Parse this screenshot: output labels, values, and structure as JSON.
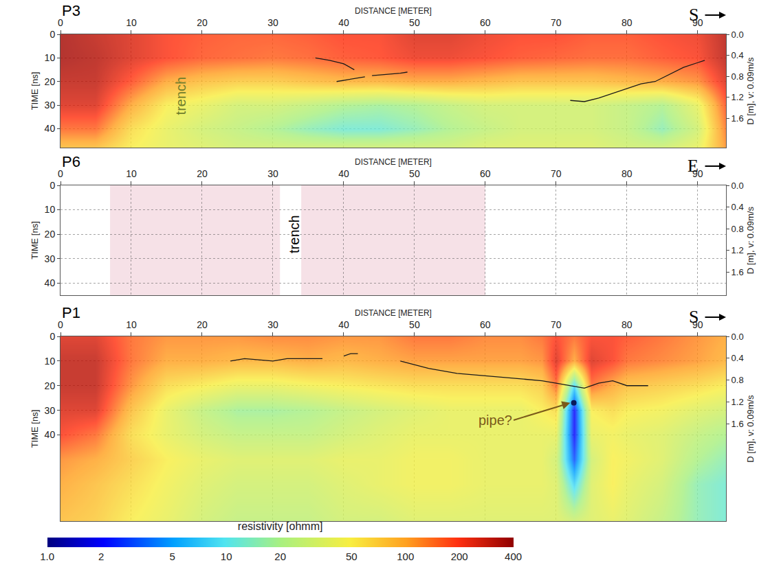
{
  "chart_data": [
    {
      "type": "heatmap",
      "title": "P3",
      "direction": "S",
      "x_label": "DISTANCE [METER]",
      "y_label": "TIME [ns]",
      "y2_label": "D [m], v: 0.09m/s",
      "xlim": [
        0,
        94
      ],
      "xticks": [
        0,
        10,
        20,
        30,
        40,
        50,
        60,
        70,
        80,
        90
      ],
      "ylim": [
        0,
        48
      ],
      "yticks": [
        0,
        10,
        20,
        30,
        40
      ],
      "y2lim": [
        0,
        2.16
      ],
      "y2ticks": [
        {
          "value": 0,
          "label": "0.0"
        },
        0.4,
        0.8,
        1.2,
        1.6
      ],
      "grid": true,
      "x": [
        0,
        5,
        10,
        15,
        20,
        25,
        30,
        35,
        40,
        45,
        50,
        55,
        60,
        65,
        70,
        75,
        80,
        85,
        90,
        95
      ],
      "y": [
        0,
        10,
        20,
        30,
        40,
        48
      ],
      "cells": [
        [
          350,
          300,
          250,
          200,
          180,
          170,
          170,
          180,
          200,
          200,
          250,
          250,
          220,
          200,
          200,
          180,
          180,
          200,
          220,
          350
        ],
        [
          350,
          320,
          250,
          200,
          170,
          160,
          150,
          160,
          180,
          190,
          220,
          220,
          200,
          180,
          170,
          160,
          160,
          180,
          200,
          350
        ],
        [
          300,
          300,
          180,
          100,
          80,
          70,
          70,
          80,
          90,
          90,
          100,
          100,
          90,
          80,
          80,
          80,
          90,
          100,
          120,
          300
        ],
        [
          250,
          250,
          100,
          50,
          40,
          30,
          30,
          25,
          20,
          18,
          20,
          25,
          30,
          30,
          30,
          30,
          25,
          20,
          40,
          250
        ],
        [
          150,
          150,
          60,
          40,
          30,
          25,
          20,
          15,
          12,
          12,
          15,
          20,
          25,
          30,
          30,
          30,
          25,
          15,
          30,
          200
        ],
        [
          80,
          80,
          50,
          40,
          35,
          30,
          30,
          30,
          30,
          30,
          30,
          30,
          35,
          35,
          35,
          35,
          30,
          30,
          40,
          150
        ]
      ],
      "series": [
        {
          "type": "line",
          "x": [
            36,
            38,
            40,
            41.5
          ],
          "values": [
            10,
            11,
            12.5,
            15
          ]
        },
        {
          "type": "line",
          "x": [
            39,
            41,
            43
          ],
          "values": [
            20,
            19,
            18
          ]
        },
        {
          "type": "line",
          "x": [
            44,
            46,
            48,
            49
          ],
          "values": [
            17.5,
            17,
            16.5,
            16
          ]
        },
        {
          "type": "line",
          "x": [
            72,
            74,
            76,
            78,
            80,
            82,
            84,
            86,
            88,
            90,
            91
          ],
          "values": [
            28,
            28.5,
            27,
            25,
            23,
            21,
            20,
            17,
            14,
            12,
            11
          ]
        }
      ],
      "annotations": [
        {
          "text": "trench",
          "x": 17,
          "y": 26,
          "color": "#6f7d2c"
        }
      ]
    },
    {
      "type": "radargram",
      "title": "P6",
      "direction": "E",
      "x_label": "DISTANCE [METER]",
      "y_label": "TIME [ns]",
      "y2_label": "D [m], v: 0.09m/s",
      "xlim": [
        0,
        94
      ],
      "xticks": [
        0,
        10,
        20,
        30,
        40,
        50,
        60,
        70,
        80,
        90
      ],
      "ylim": [
        0,
        45
      ],
      "yticks": [
        0,
        10,
        20,
        30,
        40
      ],
      "y2lim": [
        0,
        2.025
      ],
      "y2ticks": [
        {
          "value": 0,
          "label": "0.0"
        },
        0.4,
        0.8,
        1.2,
        1.6
      ],
      "grid": true,
      "extent": [
        [
          7,
          31
        ],
        [
          34,
          60
        ]
      ],
      "annotations": [
        {
          "text": "trench",
          "x": 33,
          "y": 20,
          "color": "#000000"
        }
      ]
    },
    {
      "type": "heatmap",
      "title": "P1",
      "direction": "S",
      "x_label": "DISTANCE [METER]",
      "y_label": "TIME [ns]",
      "y2_label": "D [m], v: 0.09m/s",
      "xlim": [
        0,
        94
      ],
      "xticks": [
        0,
        10,
        20,
        30,
        40,
        50,
        60,
        70,
        80,
        90
      ],
      "ylim": [
        0,
        75
      ],
      "yticks": [
        0,
        10,
        20,
        30,
        40
      ],
      "y2lim": [
        0,
        3.375
      ],
      "y2ticks": [
        {
          "value": 0,
          "label": "0.0"
        },
        0.4,
        0.8,
        1.2,
        1.6
      ],
      "grid": true,
      "x": [
        0,
        5,
        10,
        15,
        20,
        25,
        30,
        35,
        40,
        45,
        50,
        55,
        60,
        65,
        68,
        70,
        72.5,
        75,
        78,
        80,
        85,
        90,
        94
      ],
      "y": [
        0,
        10,
        20,
        30,
        40,
        50,
        60,
        75
      ],
      "cells": [
        [
          250,
          250,
          150,
          120,
          120,
          120,
          130,
          130,
          120,
          120,
          150,
          150,
          130,
          130,
          150,
          200,
          150,
          200,
          200,
          180,
          150,
          120,
          100
        ],
        [
          300,
          300,
          150,
          100,
          100,
          90,
          90,
          100,
          90,
          100,
          110,
          110,
          110,
          110,
          120,
          250,
          100,
          250,
          200,
          150,
          130,
          110,
          90
        ],
        [
          300,
          300,
          120,
          60,
          50,
          40,
          40,
          45,
          50,
          55,
          60,
          60,
          60,
          60,
          70,
          150,
          8,
          150,
          100,
          80,
          70,
          60,
          50
        ],
        [
          250,
          250,
          80,
          40,
          25,
          18,
          18,
          20,
          25,
          30,
          35,
          40,
          40,
          40,
          50,
          60,
          2,
          50,
          60,
          50,
          45,
          35,
          30
        ],
        [
          200,
          150,
          60,
          40,
          30,
          25,
          25,
          25,
          30,
          35,
          40,
          40,
          40,
          40,
          40,
          40,
          2,
          40,
          45,
          40,
          35,
          25,
          20
        ],
        [
          120,
          100,
          70,
          50,
          40,
          35,
          35,
          35,
          40,
          40,
          45,
          45,
          40,
          40,
          40,
          30,
          3,
          30,
          50,
          45,
          35,
          20,
          15
        ],
        [
          100,
          80,
          60,
          45,
          35,
          30,
          30,
          30,
          35,
          40,
          45,
          45,
          40,
          40,
          40,
          35,
          8,
          35,
          50,
          40,
          30,
          15,
          12
        ],
        [
          80,
          70,
          50,
          40,
          30,
          25,
          25,
          25,
          30,
          30,
          35,
          35,
          35,
          35,
          35,
          35,
          30,
          35,
          40,
          35,
          25,
          15,
          12
        ]
      ],
      "series": [
        {
          "type": "line",
          "x": [
            24,
            26,
            28,
            30,
            32,
            34,
            37
          ],
          "values": [
            10,
            9,
            9.5,
            10,
            9,
            9,
            9
          ]
        },
        {
          "type": "line",
          "x": [
            40,
            41,
            42
          ],
          "values": [
            8,
            7,
            7
          ]
        },
        {
          "type": "line",
          "x": [
            48,
            52,
            56,
            60,
            64,
            68,
            70,
            72,
            74,
            76,
            78,
            80,
            83
          ],
          "values": [
            10,
            13,
            15,
            16,
            17,
            18,
            19,
            20,
            21,
            19,
            18,
            20,
            20
          ]
        },
        {
          "type": "scatter",
          "x": [
            72.5
          ],
          "values": [
            27
          ],
          "marker": "circle",
          "color": "#0a1a5a"
        }
      ],
      "annotations": [
        {
          "text": "pipe?",
          "x": 64,
          "y": 34,
          "arrow_to": [
            72,
            27
          ],
          "color": "#7a5a1a"
        }
      ]
    }
  ],
  "colorbar": {
    "title": "resistivity [ohmm]",
    "log": true,
    "range": [
      1,
      400
    ],
    "ticks": [
      {
        "value": 1,
        "label": "1.0"
      },
      2,
      5,
      10,
      20,
      50,
      100,
      200,
      400
    ]
  }
}
